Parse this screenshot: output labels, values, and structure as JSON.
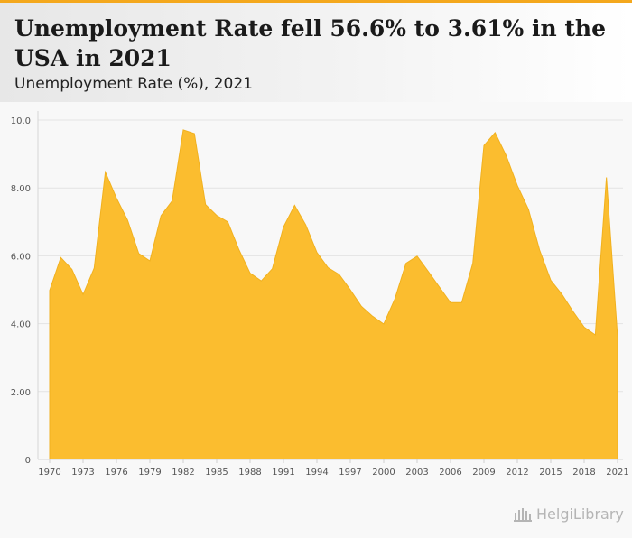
{
  "header": {
    "title": "Unemployment Rate fell 56.6% to 3.61% in the USA in 2021",
    "subtitle": "Unemployment Rate (%), 2021"
  },
  "logo": {
    "text": "HelgiLibrary"
  },
  "colors": {
    "accent": "#f4a81d",
    "fill": "#fbbd2f",
    "stroke": "#f1b11f"
  },
  "chart_data": {
    "type": "area",
    "title": "Unemployment Rate fell 56.6% to 3.61% in the USA in 2021",
    "subtitle": "Unemployment Rate (%), 2021",
    "xlabel": "",
    "ylabel": "",
    "ylim": [
      0,
      10
    ],
    "y_ticks": [
      "0",
      "2.00",
      "4.00",
      "6.00",
      "8.00",
      "10.0"
    ],
    "x_tick_labels": [
      "1970",
      "1973",
      "1976",
      "1979",
      "1982",
      "1985",
      "1988",
      "1991",
      "1994",
      "1997",
      "2000",
      "2003",
      "2006",
      "2009",
      "2012",
      "2015",
      "2018",
      "2021"
    ],
    "grid": true,
    "x": [
      1970,
      1971,
      1972,
      1973,
      1974,
      1975,
      1976,
      1977,
      1978,
      1979,
      1980,
      1981,
      1982,
      1983,
      1984,
      1985,
      1986,
      1987,
      1988,
      1989,
      1990,
      1991,
      1992,
      1993,
      1994,
      1995,
      1996,
      1997,
      1998,
      1999,
      2000,
      2001,
      2002,
      2003,
      2004,
      2005,
      2006,
      2007,
      2008,
      2009,
      2010,
      2011,
      2012,
      2013,
      2014,
      2015,
      2016,
      2017,
      2018,
      2019,
      2020,
      2021
    ],
    "series": [
      {
        "name": "Unemployment Rate (%)",
        "values": [
          4.98,
          5.95,
          5.6,
          4.86,
          5.64,
          8.47,
          7.7,
          7.05,
          6.07,
          5.85,
          7.18,
          7.62,
          9.71,
          9.6,
          7.51,
          7.19,
          7.0,
          6.18,
          5.49,
          5.26,
          5.62,
          6.85,
          7.49,
          6.91,
          6.1,
          5.65,
          5.45,
          5.0,
          4.51,
          4.22,
          3.99,
          4.73,
          5.78,
          5.99,
          5.54,
          5.08,
          4.62,
          4.62,
          5.78,
          9.25,
          9.63,
          8.95,
          8.07,
          7.37,
          6.17,
          5.28,
          4.87,
          4.36,
          3.9,
          3.67,
          8.31,
          3.61
        ]
      }
    ]
  }
}
